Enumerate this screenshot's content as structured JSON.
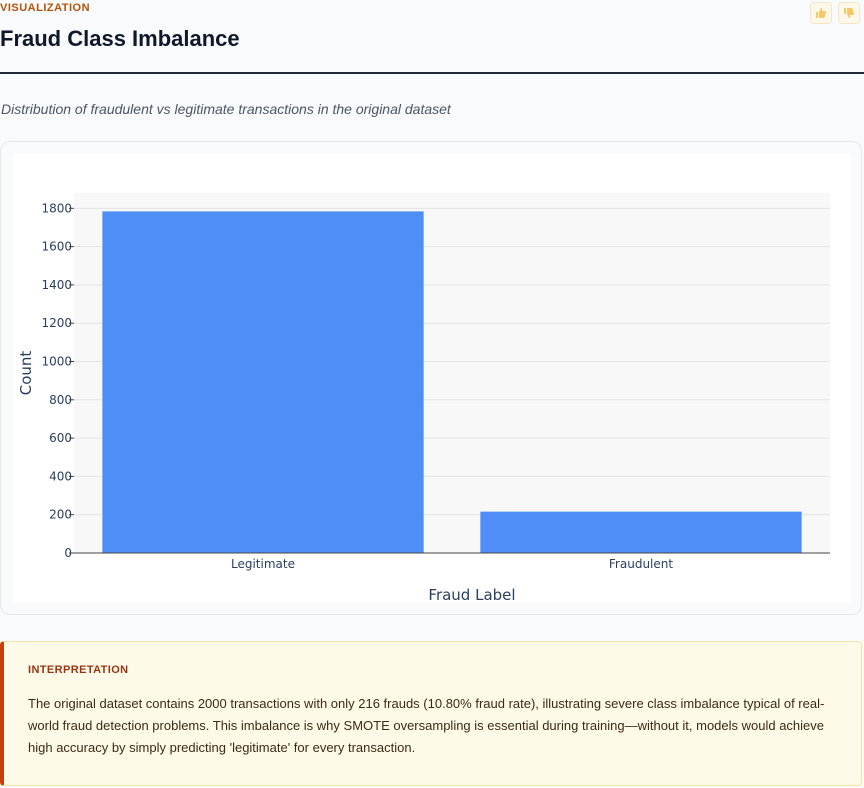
{
  "header": {
    "section_tag": "VISUALIZATION",
    "title": "Fraud Class Imbalance",
    "subtitle": "Distribution of fraudulent vs legitimate transactions in the original dataset"
  },
  "feedback": {
    "thumbs_up_icon": "thumbs-up-icon",
    "thumbs_down_icon": "thumbs-down-icon"
  },
  "chart_data": {
    "type": "bar",
    "categories": [
      "Legitimate",
      "Fraudulent"
    ],
    "values": [
      1784,
      216
    ],
    "title": "",
    "xlabel": "Fraud Label",
    "ylabel": "Count",
    "ylim": [
      0,
      1880
    ],
    "yticks": [
      0,
      200,
      400,
      600,
      800,
      1000,
      1200,
      1400,
      1600,
      1800
    ],
    "grid": true,
    "bar_color": "#4f8ef7"
  },
  "interpretation": {
    "title": "INTERPRETATION",
    "body": "The original dataset contains 2000 transactions with only 216 frauds (10.80% fraud rate), illustrating severe class imbalance typical of real-world fraud detection problems. This imbalance is why SMOTE oversampling is essential during training—without it, models would achieve high accuracy by simply predicting 'legitimate' for every transaction."
  },
  "colors": {
    "accent": "#b45309",
    "callout_border": "#c2410c",
    "callout_bg": "#fefae8"
  }
}
